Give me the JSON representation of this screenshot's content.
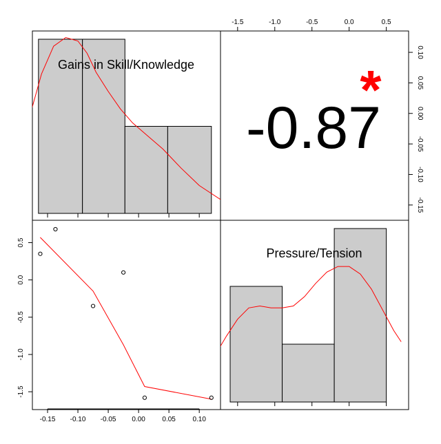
{
  "chart_data": {
    "type": "scatter",
    "variables": [
      "Gains in Skill/Knowledge",
      "Pressure/Tension"
    ],
    "correlation": {
      "value_label": "-0.87",
      "significance_mark": "*",
      "color": "#ff0000"
    },
    "histograms": [
      {
        "variable": "Gains in Skill/Knowledge",
        "bin_edges": [
          -0.165,
          -0.0925,
          -0.0225,
          0.048,
          0.12
        ],
        "counts": [
          2,
          2,
          1,
          1
        ],
        "density_curve_color": "#ff0000",
        "density_curve": [
          [
            -0.18,
            0.55
          ],
          [
            -0.16,
            0.8
          ],
          [
            -0.14,
            0.96
          ],
          [
            -0.12,
            1.01
          ],
          [
            -0.1,
            0.99
          ],
          [
            -0.085,
            0.92
          ],
          [
            -0.07,
            0.81
          ],
          [
            -0.05,
            0.7
          ],
          [
            -0.03,
            0.6
          ],
          [
            -0.01,
            0.52
          ],
          [
            0.01,
            0.46
          ],
          [
            0.04,
            0.37
          ],
          [
            0.07,
            0.26
          ],
          [
            0.1,
            0.16
          ],
          [
            0.135,
            0.08
          ]
        ]
      },
      {
        "variable": "Pressure/Tension",
        "bin_edges": [
          -1.6,
          -0.9,
          -0.2,
          0.5
        ],
        "counts": [
          2,
          1,
          3
        ],
        "density_curve_color": "#ff0000",
        "density_curve": [
          [
            -1.8,
            0.25
          ],
          [
            -1.65,
            0.35
          ],
          [
            -1.5,
            0.44
          ],
          [
            -1.35,
            0.5
          ],
          [
            -1.2,
            0.51
          ],
          [
            -1.05,
            0.5
          ],
          [
            -0.9,
            0.5
          ],
          [
            -0.75,
            0.51
          ],
          [
            -0.6,
            0.56
          ],
          [
            -0.45,
            0.63
          ],
          [
            -0.3,
            0.69
          ],
          [
            -0.15,
            0.72
          ],
          [
            0.0,
            0.72
          ],
          [
            0.15,
            0.68
          ],
          [
            0.3,
            0.6
          ],
          [
            0.45,
            0.49
          ],
          [
            0.6,
            0.38
          ],
          [
            0.7,
            0.32
          ]
        ]
      }
    ],
    "scatter": {
      "x_variable": "Gains in Skill/Knowledge",
      "y_variable": "Pressure/Tension",
      "points": [
        [
          -0.162,
          0.35
        ],
        [
          -0.137,
          0.68
        ],
        [
          -0.075,
          -0.35
        ],
        [
          -0.025,
          0.1
        ],
        [
          0.01,
          -1.58
        ],
        [
          0.12,
          -1.58
        ]
      ],
      "smooth_line_color": "#ff0000",
      "smooth_line": [
        [
          -0.162,
          0.57
        ],
        [
          -0.075,
          -0.15
        ],
        [
          -0.025,
          -0.87
        ],
        [
          0.01,
          -1.43
        ],
        [
          0.12,
          -1.6
        ]
      ]
    },
    "axes": {
      "bottom": {
        "range": [
          -0.175,
          0.135
        ],
        "ticks": [
          -0.15,
          -0.1,
          -0.05,
          0.0,
          0.05,
          0.1
        ],
        "tick_labels": [
          "-0.15",
          "-0.10",
          "-0.05",
          "0.00",
          "0.05",
          "0.10"
        ]
      },
      "left": {
        "range": [
          -1.73,
          0.8
        ],
        "ticks": [
          -1.5,
          -1.0,
          -0.5,
          0.0,
          0.5
        ],
        "tick_labels": [
          "-1.5",
          "-1.0",
          "-0.5",
          "0.0",
          "0.5"
        ]
      },
      "top": {
        "range": [
          -1.73,
          0.8
        ],
        "ticks": [
          -1.5,
          -1.0,
          -0.5,
          0.0,
          0.5
        ],
        "tick_labels": [
          "-1.5",
          "-1.0",
          "-0.5",
          "0.0",
          "0.5"
        ]
      },
      "right": {
        "range": [
          -0.175,
          0.135
        ],
        "ticks": [
          -0.15,
          -0.1,
          -0.05,
          0.0,
          0.05,
          0.1
        ],
        "tick_labels": [
          "-0.15",
          "-0.10",
          "-0.05",
          "0.00",
          "0.05",
          "0.10"
        ]
      }
    },
    "colors": {
      "histogram_bar": "#cccccc",
      "points": "#000000",
      "fit_lines": "#ff0000"
    },
    "grid": false
  }
}
